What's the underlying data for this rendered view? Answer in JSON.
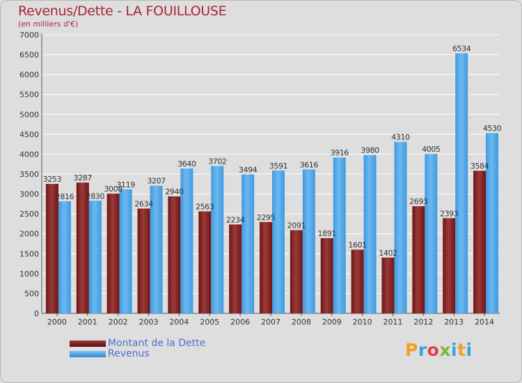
{
  "header": {
    "title": "Revenus/Dette - LA FOUILLOUSE",
    "subtitle": "(en milliers d'€)"
  },
  "legend": {
    "items": [
      {
        "label": "Montant de la Dette",
        "color": "#7a1a1a"
      },
      {
        "label": "Revenus",
        "color": "#3f9ae0"
      }
    ]
  },
  "logo": {
    "text": "Proxiti"
  },
  "colors": {
    "dette": "#6e1515",
    "dette_light": "#9b3a3a",
    "revenus": "#3f9ae0",
    "revenus_light": "#6cb8f0",
    "grid": "#ffffff",
    "axis_text": "#333333"
  },
  "chart_data": {
    "type": "bar",
    "categories": [
      "2000",
      "2001",
      "2002",
      "2003",
      "2004",
      "2005",
      "2006",
      "2007",
      "2008",
      "2009",
      "2010",
      "2011",
      "2012",
      "2013",
      "2014"
    ],
    "series": [
      {
        "name": "Montant de la Dette",
        "values": [
          3253,
          3287,
          3008,
          2634,
          2940,
          2563,
          2234,
          2295,
          2091,
          1891,
          1601,
          1402,
          2693,
          2393,
          3584
        ],
        "labels": [
          "3253",
          "3287",
          "3008",
          "2634",
          "2940",
          "2563",
          "2234",
          "2295",
          "2091",
          "1891",
          "1601",
          "1402",
          "2693",
          "2393",
          "3584"
        ]
      },
      {
        "name": "Revenus",
        "values": [
          2816,
          2830,
          3119,
          3207,
          3640,
          3702,
          3494,
          3591,
          3616,
          3916,
          3980,
          4310,
          4005,
          6534,
          4530
        ],
        "labels": [
          "2816",
          "2830",
          "3119",
          "3207",
          "3640",
          "3702",
          "3494",
          "3591",
          "3616",
          "3916",
          "3980",
          "4310",
          "4005",
          "6534",
          "4530"
        ]
      }
    ],
    "yticks": [
      "0",
      "500",
      "1000",
      "1500",
      "2000",
      "2500",
      "3000",
      "3500",
      "4000",
      "4500",
      "5000",
      "5500",
      "6000",
      "6500",
      "7000"
    ],
    "ylim": [
      0,
      7000
    ],
    "grid": true,
    "legend_position": "bottom-left"
  }
}
